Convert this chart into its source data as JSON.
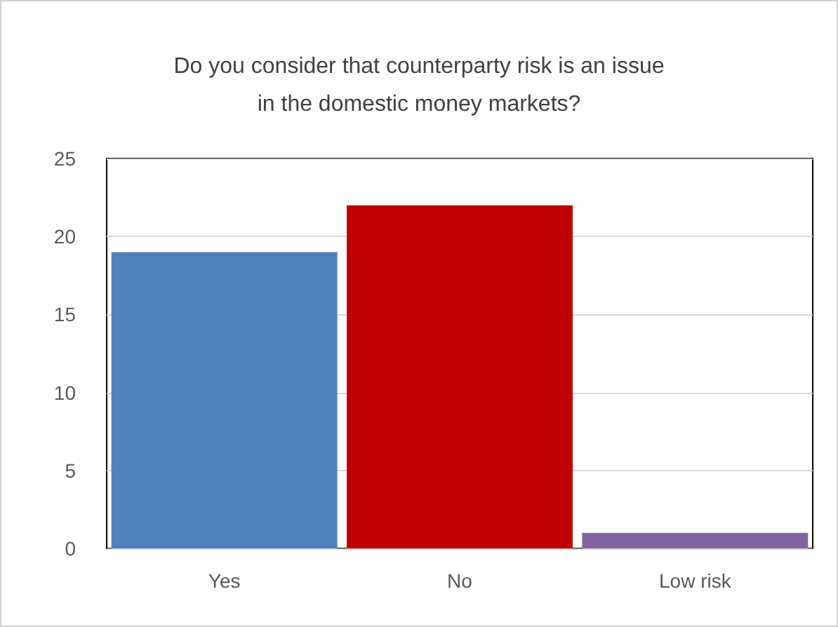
{
  "chart_data": {
    "type": "bar",
    "title": "Do you consider that counterparty risk is an issue\nin the domestic money markets?",
    "categories": [
      "Yes",
      "No",
      "Low risk"
    ],
    "values": [
      19,
      22,
      1
    ],
    "colors": [
      "#4f81bd",
      "#c00000",
      "#8064a2"
    ],
    "ylim": [
      0,
      25
    ],
    "yticks": [
      0,
      5,
      10,
      15,
      20,
      25
    ],
    "grid": "y"
  }
}
